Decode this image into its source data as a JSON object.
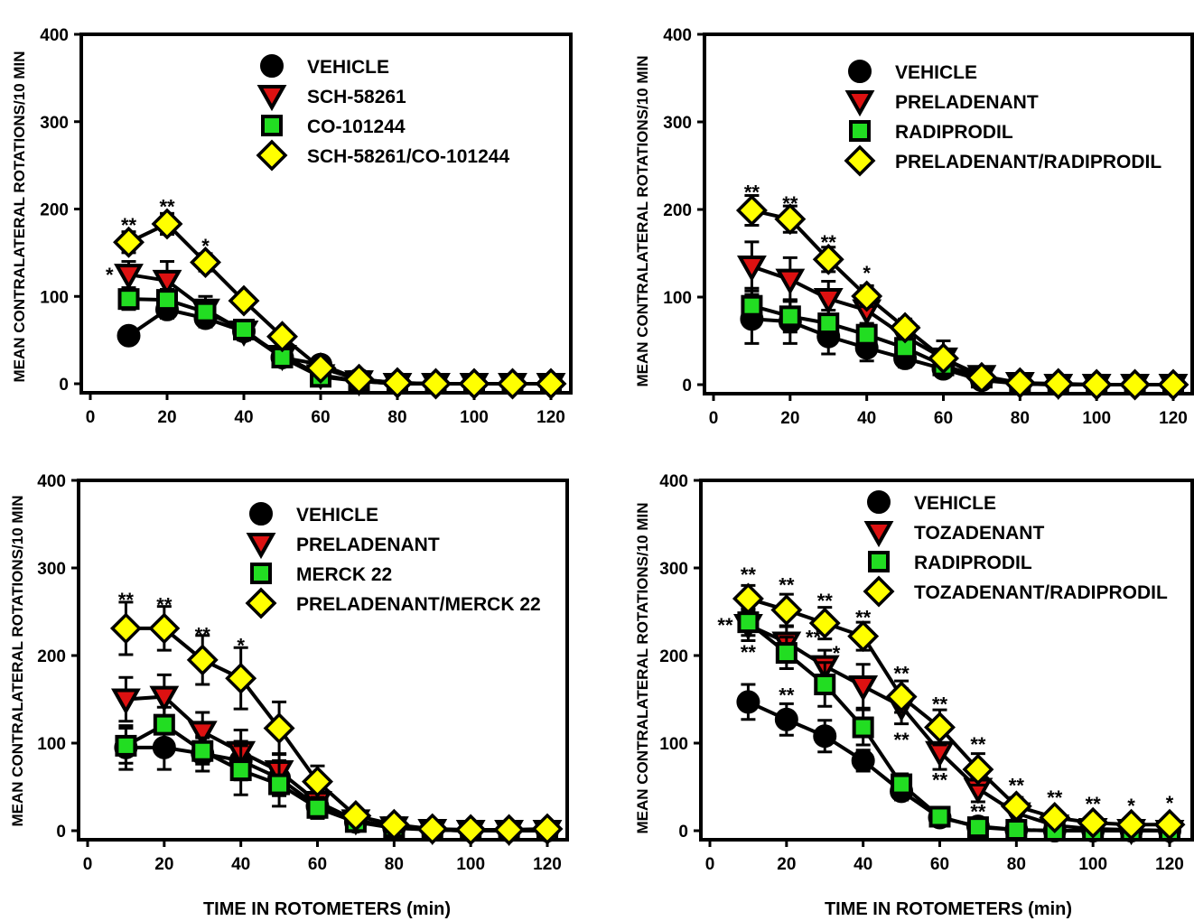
{
  "figure": {
    "xlabel": "TIME IN ROTOMETERS (min)"
  },
  "colors": {
    "vehicle": "#000000",
    "a2a": "#dd1111",
    "nr2b": "#22dd22",
    "combo": "#ffff00",
    "outline": "#000000"
  },
  "marker_icons": {
    "vehicle": "circle-marker",
    "a2a": "down-triangle-marker",
    "nr2b": "square-marker",
    "combo": "diamond-marker"
  },
  "chart_data": [
    {
      "type": "line",
      "ylabel": "MEAN CONTRALATERAL ROTATIONS/10 MIN",
      "xlim": [
        0,
        120
      ],
      "ylim": [
        0,
        400
      ],
      "xticks": [
        "0",
        "20",
        "40",
        "60",
        "80",
        "100",
        "120"
      ],
      "yticks": [
        "0",
        "100",
        "200",
        "300",
        "400"
      ],
      "grid": false,
      "legend_position": "top-right",
      "x": [
        10,
        20,
        30,
        40,
        50,
        60,
        70,
        80,
        90,
        100,
        110,
        120
      ],
      "series": [
        {
          "name": "VEHICLE",
          "marker": "circle",
          "values": [
            55,
            85,
            75,
            60,
            30,
            22,
            5,
            1,
            0,
            0,
            0,
            0
          ],
          "errors": [
            8,
            10,
            10,
            8,
            6,
            5,
            3,
            1,
            0,
            0,
            0,
            0
          ]
        },
        {
          "name": "SCH-58261",
          "marker": "triangle",
          "values": [
            125,
            118,
            85,
            60,
            32,
            10,
            3,
            0,
            0,
            0,
            0,
            0
          ],
          "errors": [
            15,
            22,
            15,
            10,
            8,
            5,
            2,
            0,
            0,
            0,
            0,
            0
          ]
        },
        {
          "name": "CO-101244",
          "marker": "square",
          "values": [
            97,
            96,
            82,
            62,
            30,
            8,
            3,
            0,
            0,
            0,
            0,
            0
          ],
          "errors": [
            12,
            12,
            10,
            8,
            6,
            4,
            2,
            0,
            0,
            0,
            0,
            0
          ]
        },
        {
          "name": "SCH-58261/CO-101244",
          "marker": "diamond",
          "values": [
            162,
            183,
            139,
            95,
            54,
            18,
            5,
            1,
            0,
            0,
            0,
            0
          ],
          "errors": [
            12,
            12,
            10,
            8,
            8,
            5,
            3,
            1,
            0,
            0,
            0,
            0
          ]
        }
      ],
      "annotations": [
        {
          "x": 10,
          "y": 182,
          "text": "**"
        },
        {
          "x": 20,
          "y": 203,
          "text": "**"
        },
        {
          "x": 30,
          "y": 158,
          "text": "*"
        },
        {
          "x": 5,
          "y": 125,
          "text": "*"
        }
      ]
    },
    {
      "type": "line",
      "ylabel": "MEAN CONTRALATERAL ROTATIONS/10 MIN",
      "xlim": [
        0,
        120
      ],
      "ylim": [
        0,
        400
      ],
      "xticks": [
        "0",
        "20",
        "40",
        "60",
        "80",
        "100",
        "120"
      ],
      "yticks": [
        "0",
        "100",
        "200",
        "300",
        "400"
      ],
      "grid": false,
      "legend_position": "top-right",
      "x": [
        10,
        20,
        30,
        40,
        50,
        60,
        70,
        80,
        90,
        100,
        110,
        120
      ],
      "series": [
        {
          "name": "VEHICLE",
          "marker": "circle",
          "values": [
            75,
            72,
            55,
            42,
            30,
            18,
            5,
            1,
            0,
            0,
            0,
            0
          ],
          "errors": [
            28,
            25,
            20,
            15,
            10,
            6,
            3,
            1,
            0,
            0,
            0,
            0
          ]
        },
        {
          "name": "PRELADENANT",
          "marker": "triangle",
          "values": [
            135,
            120,
            98,
            85,
            55,
            30,
            10,
            2,
            0,
            0,
            0,
            0
          ],
          "errors": [
            28,
            25,
            20,
            15,
            12,
            20,
            8,
            2,
            0,
            0,
            0,
            0
          ]
        },
        {
          "name": "RADIPRODIL",
          "marker": "square",
          "values": [
            90,
            78,
            70,
            57,
            42,
            22,
            8,
            1,
            0,
            0,
            0,
            0
          ],
          "errors": [
            20,
            18,
            15,
            12,
            10,
            6,
            4,
            1,
            0,
            0,
            0,
            0
          ]
        },
        {
          "name": "PRELADENANT/RADIPRODIL",
          "marker": "diamond",
          "values": [
            199,
            189,
            143,
            101,
            65,
            30,
            8,
            2,
            1,
            0,
            0,
            0
          ],
          "errors": [
            17,
            15,
            14,
            12,
            10,
            8,
            4,
            2,
            1,
            0,
            0,
            0
          ]
        }
      ],
      "annotations": [
        {
          "x": 10,
          "y": 220,
          "text": "**"
        },
        {
          "x": 20,
          "y": 207,
          "text": "**"
        },
        {
          "x": 30,
          "y": 163,
          "text": "**"
        },
        {
          "x": 40,
          "y": 128,
          "text": "*"
        }
      ]
    },
    {
      "type": "line",
      "ylabel": "MEAN CONTRALATERAL ROTATIONS/10 MIN",
      "xlim": [
        0,
        120
      ],
      "ylim": [
        0,
        400
      ],
      "xticks": [
        "0",
        "20",
        "40",
        "60",
        "80",
        "100",
        "120"
      ],
      "yticks": [
        "0",
        "100",
        "200",
        "300",
        "400"
      ],
      "grid": false,
      "legend_position": "top-right",
      "x": [
        10,
        20,
        30,
        40,
        50,
        60,
        70,
        80,
        90,
        100,
        110,
        120
      ],
      "series": [
        {
          "name": "VEHICLE",
          "marker": "circle",
          "values": [
            95,
            95,
            88,
            80,
            60,
            28,
            10,
            3,
            1,
            0,
            0,
            0
          ],
          "errors": [
            25,
            25,
            20,
            22,
            20,
            10,
            5,
            2,
            1,
            0,
            0,
            0
          ]
        },
        {
          "name": "PRELADENANT",
          "marker": "triangle",
          "values": [
            150,
            153,
            113,
            90,
            68,
            33,
            12,
            4,
            1,
            0,
            0,
            0
          ],
          "errors": [
            25,
            25,
            22,
            25,
            20,
            12,
            6,
            3,
            1,
            0,
            0,
            0
          ]
        },
        {
          "name": "MERCK 22",
          "marker": "square",
          "values": [
            97,
            121,
            91,
            69,
            53,
            26,
            10,
            4,
            1,
            0,
            0,
            0
          ],
          "errors": [
            20,
            20,
            15,
            28,
            25,
            12,
            6,
            3,
            1,
            0,
            0,
            0
          ]
        },
        {
          "name": "PRELADENANT/MERCK 22",
          "marker": "diamond",
          "values": [
            231,
            231,
            195,
            174,
            117,
            56,
            17,
            7,
            2,
            1,
            1,
            2
          ],
          "errors": [
            30,
            25,
            28,
            35,
            30,
            18,
            8,
            4,
            2,
            1,
            1,
            1
          ]
        }
      ],
      "annotations": [
        {
          "x": 10,
          "y": 264,
          "text": "**"
        },
        {
          "x": 20,
          "y": 258,
          "text": "**"
        },
        {
          "x": 30,
          "y": 224,
          "text": "**"
        },
        {
          "x": 40,
          "y": 212,
          "text": "*"
        }
      ]
    },
    {
      "type": "line",
      "ylabel": "MEAN CONTRALATERAL ROTATIONS/10 MIN",
      "xlim": [
        0,
        120
      ],
      "ylim": [
        0,
        400
      ],
      "xticks": [
        "0",
        "20",
        "40",
        "60",
        "80",
        "100",
        "120"
      ],
      "yticks": [
        "0",
        "100",
        "200",
        "300",
        "400"
      ],
      "grid": false,
      "legend_position": "top-right",
      "x": [
        10,
        20,
        30,
        40,
        50,
        60,
        70,
        80,
        90,
        100,
        110,
        120
      ],
      "series": [
        {
          "name": "VEHICLE",
          "marker": "circle",
          "values": [
            147,
            127,
            108,
            80,
            45,
            15,
            5,
            1,
            0,
            0,
            0,
            0
          ],
          "errors": [
            20,
            18,
            18,
            12,
            10,
            5,
            3,
            1,
            0,
            0,
            0,
            0
          ]
        },
        {
          "name": "TOZADENANT",
          "marker": "triangle",
          "values": [
            235,
            215,
            188,
            165,
            142,
            90,
            48,
            20,
            6,
            2,
            1,
            0
          ],
          "errors": [
            18,
            18,
            18,
            25,
            20,
            20,
            15,
            8,
            4,
            2,
            1,
            0
          ]
        },
        {
          "name": "RADIPRODIL",
          "marker": "square",
          "values": [
            238,
            203,
            167,
            118,
            53,
            16,
            4,
            1,
            0,
            0,
            0,
            0
          ],
          "errors": [
            15,
            18,
            25,
            20,
            12,
            6,
            3,
            1,
            0,
            0,
            0,
            0
          ]
        },
        {
          "name": "TOZADENANT/RADIPRODIL",
          "marker": "diamond",
          "values": [
            265,
            252,
            237,
            222,
            153,
            118,
            70,
            28,
            15,
            9,
            7,
            7
          ],
          "errors": [
            15,
            18,
            18,
            16,
            18,
            20,
            18,
            10,
            6,
            4,
            3,
            3
          ]
        }
      ],
      "annotations": [
        {
          "x": 10,
          "y": 293,
          "text": "**"
        },
        {
          "x": 20,
          "y": 281,
          "text": "**"
        },
        {
          "x": 30,
          "y": 263,
          "text": "**"
        },
        {
          "x": 40,
          "y": 244,
          "text": "**"
        },
        {
          "x": 50,
          "y": 180,
          "text": "**"
        },
        {
          "x": 60,
          "y": 145,
          "text": "**"
        },
        {
          "x": 70,
          "y": 99,
          "text": "**"
        },
        {
          "x": 80,
          "y": 52,
          "text": "**"
        },
        {
          "x": 90,
          "y": 38,
          "text": "**"
        },
        {
          "x": 100,
          "y": 31,
          "text": "**"
        },
        {
          "x": 110,
          "y": 29,
          "text": "*"
        },
        {
          "x": 120,
          "y": 32,
          "text": "*"
        },
        {
          "x": 4,
          "y": 235,
          "text": "**"
        },
        {
          "x": 10,
          "y": 204,
          "text": "**"
        },
        {
          "x": 20,
          "y": 155,
          "text": "**"
        },
        {
          "x": 27,
          "y": 221,
          "text": "**"
        },
        {
          "x": 33,
          "y": 203,
          "text": "*"
        },
        {
          "x": 50,
          "y": 104,
          "text": "**"
        },
        {
          "x": 60,
          "y": 58,
          "text": "**"
        },
        {
          "x": 70,
          "y": 22,
          "text": "**"
        }
      ]
    }
  ]
}
